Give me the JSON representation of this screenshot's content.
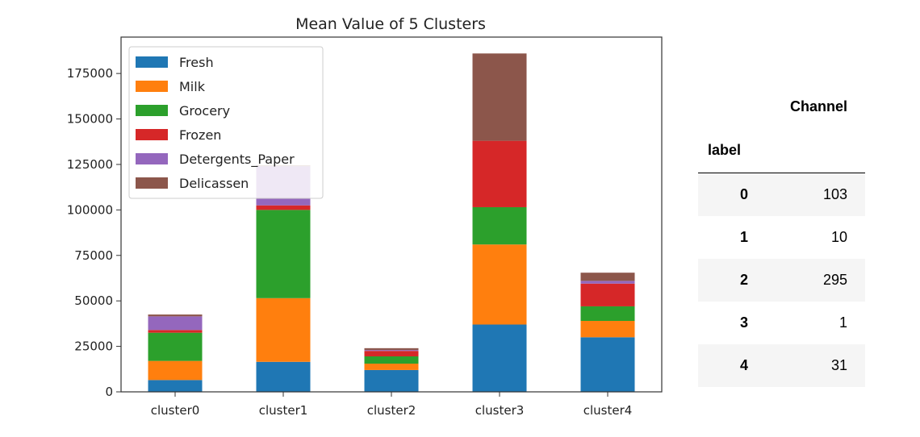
{
  "chart_data": {
    "type": "bar",
    "stacked": true,
    "title": "Mean Value of 5 Clusters",
    "xlabel": "",
    "ylabel": "",
    "categories": [
      "cluster0",
      "cluster1",
      "cluster2",
      "cluster3",
      "cluster4"
    ],
    "yticks": [
      0,
      25000,
      50000,
      75000,
      100000,
      125000,
      150000,
      175000
    ],
    "ylim": [
      0,
      195000
    ],
    "grid": false,
    "legend_position": "top-left",
    "series": [
      {
        "name": "Fresh",
        "color": "#1f77b4",
        "values": [
          6500,
          16500,
          12000,
          37000,
          30000
        ]
      },
      {
        "name": "Milk",
        "color": "#ff7f0e",
        "values": [
          10500,
          35000,
          3500,
          44000,
          9000
        ]
      },
      {
        "name": "Grocery",
        "color": "#2ca02c",
        "values": [
          15500,
          48500,
          4000,
          20500,
          8000
        ]
      },
      {
        "name": "Frozen",
        "color": "#d62728",
        "values": [
          1500,
          2500,
          3000,
          36500,
          12500
        ]
      },
      {
        "name": "Detergents_Paper",
        "color": "#9467bd",
        "values": [
          7500,
          21500,
          500,
          0,
          1500
        ]
      },
      {
        "name": "Delicassen",
        "color": "#8c564b",
        "values": [
          1000,
          500,
          1000,
          48000,
          4500
        ]
      }
    ]
  },
  "table": {
    "column_header": "Channel",
    "index_header": "label",
    "rows": [
      {
        "label": "0",
        "value": "103"
      },
      {
        "label": "1",
        "value": "10"
      },
      {
        "label": "2",
        "value": "295"
      },
      {
        "label": "3",
        "value": "1"
      },
      {
        "label": "4",
        "value": "31"
      }
    ]
  }
}
